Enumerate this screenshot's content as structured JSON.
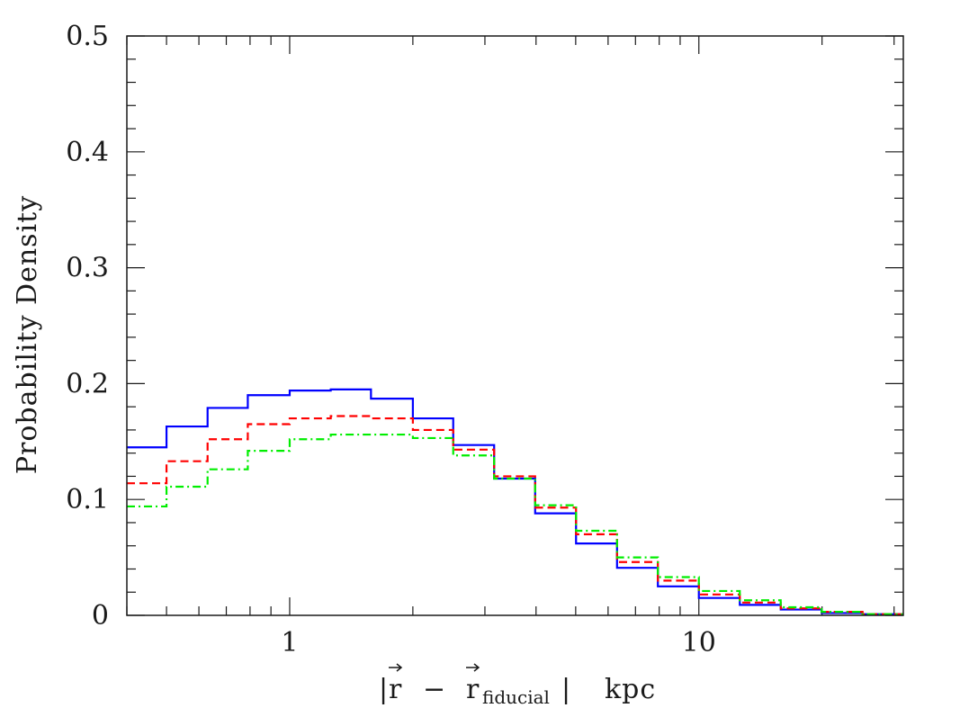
{
  "chart_data": {
    "type": "line",
    "style": "step histogram",
    "xscale": "log",
    "xlim": [
      0.4,
      31.6
    ],
    "ylim": [
      0,
      0.5
    ],
    "xlabel": {
      "prefix": "|",
      "r": "r",
      "minus": "−",
      "r2": "r",
      "sub": "fiducial",
      "suffix": "|",
      "unit": "kpc"
    },
    "ylabel": "Probability Density",
    "x_ticks": [
      {
        "value": 1,
        "label": "1"
      },
      {
        "value": 10,
        "label": "10"
      }
    ],
    "y_ticks": [
      {
        "value": 0,
        "label": "0"
      },
      {
        "value": 0.1,
        "label": "0.1"
      },
      {
        "value": 0.2,
        "label": "0.2"
      },
      {
        "value": 0.3,
        "label": "0.3"
      },
      {
        "value": 0.4,
        "label": "0.4"
      },
      {
        "value": 0.5,
        "label": "0.5"
      }
    ],
    "bin_edges": [
      0.4,
      0.5,
      0.63,
      0.79,
      1.0,
      1.26,
      1.58,
      2.0,
      2.51,
      3.16,
      3.98,
      5.01,
      6.31,
      7.94,
      10.0,
      12.59,
      15.85,
      19.95,
      25.12,
      31.62
    ],
    "series": [
      {
        "color": "#0000ff",
        "dash": "solid",
        "values": [
          0.145,
          0.163,
          0.179,
          0.19,
          0.194,
          0.195,
          0.187,
          0.17,
          0.147,
          0.118,
          0.088,
          0.062,
          0.041,
          0.025,
          0.015,
          0.009,
          0.005,
          0.002,
          0.001
        ]
      },
      {
        "color": "#ff0000",
        "dash": "dashed",
        "values": [
          0.114,
          0.133,
          0.152,
          0.165,
          0.17,
          0.172,
          0.17,
          0.16,
          0.143,
          0.12,
          0.093,
          0.07,
          0.046,
          0.03,
          0.018,
          0.011,
          0.006,
          0.003,
          0.001
        ]
      },
      {
        "color": "#00ee00",
        "dash": "dash-dot",
        "values": [
          0.094,
          0.111,
          0.126,
          0.142,
          0.152,
          0.156,
          0.156,
          0.153,
          0.138,
          0.118,
          0.095,
          0.073,
          0.05,
          0.033,
          0.021,
          0.013,
          0.007,
          0.003,
          0.001
        ]
      }
    ],
    "grid": false
  }
}
